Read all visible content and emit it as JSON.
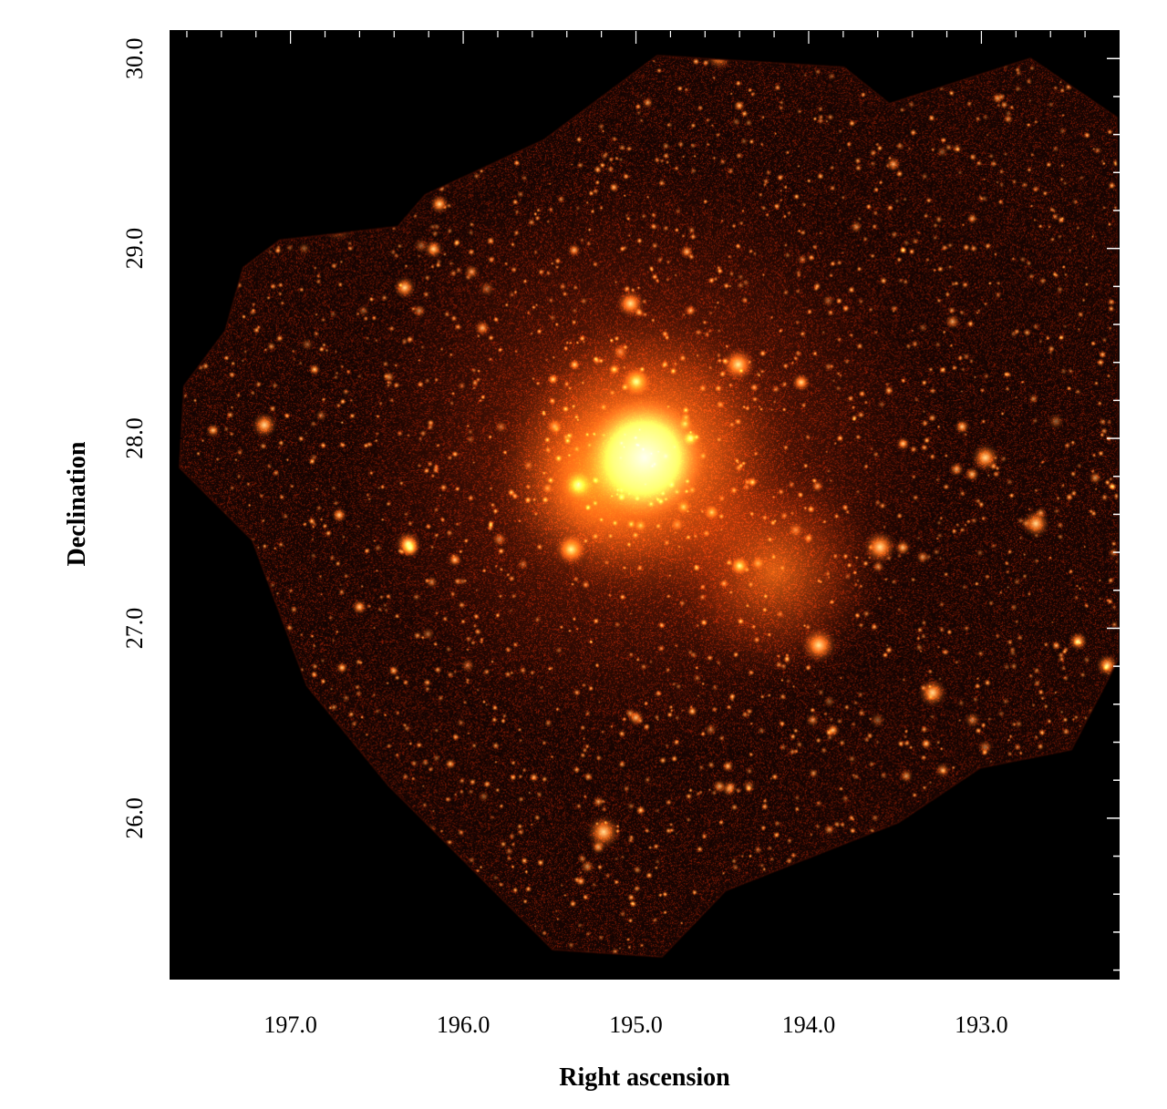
{
  "figure": {
    "xlabel": "Right ascension",
    "ylabel": "Declination",
    "colors": {
      "background": "#000000",
      "faint": "#3a0c02",
      "glow": "#c8640f",
      "core": "#fff4c0",
      "axes": "#000000",
      "ticks": "#ffffff"
    },
    "axes": {
      "x": {
        "min": 197.7,
        "max": 192.2,
        "direction": "decreasing",
        "ticks": [
          197.0,
          196.0,
          195.0,
          194.0,
          193.0
        ],
        "tick_labels": [
          "197.0",
          "196.0",
          "195.0",
          "194.0",
          "193.0"
        ],
        "minor_step": 0.2
      },
      "y": {
        "min": 25.15,
        "max": 30.15,
        "ticks": [
          26.0,
          27.0,
          28.0,
          29.0,
          30.0
        ],
        "tick_labels": [
          "26.0",
          "27.0",
          "28.0",
          "29.0",
          "30.0"
        ],
        "minor_step": 0.2
      }
    },
    "image": {
      "subject": "x-ray-cluster-sky-map",
      "colormap": "hot",
      "core_position": {
        "ra": 194.95,
        "dec": 27.9
      },
      "sub_clump_position": {
        "ra": 194.2,
        "dec": 27.3
      }
    }
  }
}
